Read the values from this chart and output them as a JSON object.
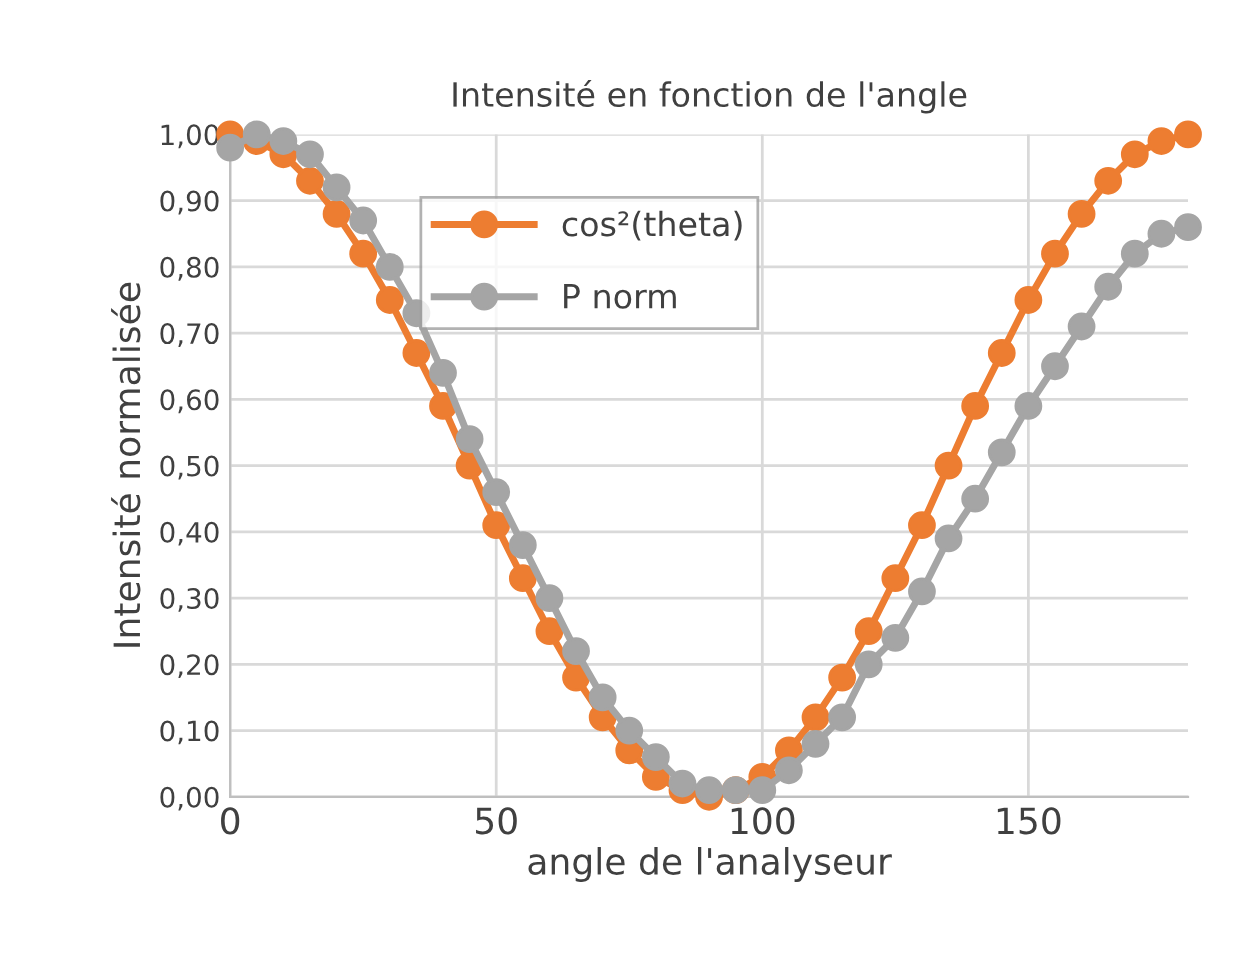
{
  "chart_data": {
    "type": "line",
    "title": "Intensité en fonction de l'angle",
    "xlabel": "angle de l'analyseur",
    "ylabel": "Intensité normalisée",
    "x": [
      0,
      5,
      10,
      15,
      20,
      25,
      30,
      35,
      40,
      45,
      50,
      55,
      60,
      65,
      70,
      75,
      80,
      85,
      90,
      95,
      100,
      105,
      110,
      115,
      120,
      125,
      130,
      135,
      140,
      145,
      150,
      155,
      160,
      165,
      170,
      175,
      180
    ],
    "series": [
      {
        "name": "cos²(theta)",
        "color": "#ed7d31",
        "values": [
          1.0,
          0.99,
          0.97,
          0.93,
          0.88,
          0.82,
          0.75,
          0.67,
          0.59,
          0.5,
          0.41,
          0.33,
          0.25,
          0.18,
          0.12,
          0.07,
          0.03,
          0.01,
          0.0,
          0.01,
          0.03,
          0.07,
          0.12,
          0.18,
          0.25,
          0.33,
          0.41,
          0.5,
          0.59,
          0.67,
          0.75,
          0.82,
          0.88,
          0.93,
          0.97,
          0.99,
          1.0
        ]
      },
      {
        "name": "P norm",
        "color": "#a5a5a5",
        "values": [
          0.98,
          1.0,
          0.99,
          0.97,
          0.92,
          0.87,
          0.8,
          0.73,
          0.64,
          0.54,
          0.46,
          0.38,
          0.3,
          0.22,
          0.15,
          0.1,
          0.06,
          0.02,
          0.01,
          0.01,
          0.01,
          0.04,
          0.08,
          0.12,
          0.2,
          0.24,
          0.31,
          0.39,
          0.45,
          0.52,
          0.59,
          0.65,
          0.71,
          0.77,
          0.82,
          0.85,
          0.86
        ]
      }
    ],
    "xlim": [
      0,
      180
    ],
    "xticks": [
      0,
      50,
      100,
      150
    ],
    "ylim": [
      0,
      1
    ],
    "yticks": [
      {
        "value": 0,
        "label": "0,00"
      },
      {
        "value": 0.1,
        "label": "0,10"
      },
      {
        "value": 0.2,
        "label": "0,20"
      },
      {
        "value": 0.3,
        "label": "0,30"
      },
      {
        "value": 0.4,
        "label": "0,40"
      },
      {
        "value": 0.5,
        "label": "0,50"
      },
      {
        "value": 0.6,
        "label": "0,60"
      },
      {
        "value": 0.7,
        "label": "0,70"
      },
      {
        "value": 0.8,
        "label": "0,80"
      },
      {
        "value": 0.9,
        "label": "0,90"
      },
      {
        "value": 1,
        "label": "1,00"
      }
    ],
    "grid": true,
    "legend": "top",
    "marker": "circle",
    "line_style": "solid"
  }
}
